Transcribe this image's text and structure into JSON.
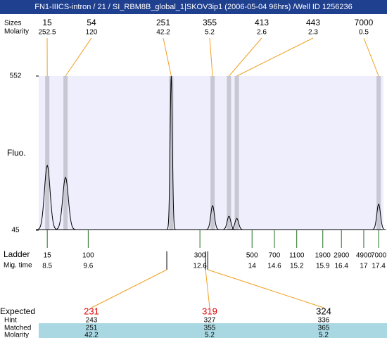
{
  "title": "FN1-IIICS-intron / 21 / SI_RBM8B_global_1|SKOV3ip1 (2006-05-04 96hrs) /Well ID 1256236",
  "chart_data": {
    "type": "electropherogram",
    "y_label": "Fluo.",
    "ylim": [
      45,
      552
    ],
    "yticks": [
      45,
      552
    ],
    "xlim": [
      8.27,
      17.53
    ],
    "peaks": {
      "row_labels": [
        "Sizes",
        "Molarity"
      ],
      "sizes": [
        15,
        54,
        251,
        355,
        413,
        443,
        7000
      ],
      "molarity": [
        252.5,
        120,
        42.2,
        5.2,
        2.6,
        2.3,
        0.5
      ],
      "times": [
        8.5,
        8.99,
        11.83,
        12.94,
        13.38,
        13.59,
        17.4
      ],
      "heights": [
        258,
        219,
        552,
        126,
        91,
        84,
        131
      ]
    },
    "ladder": {
      "label": "Ladder",
      "time_label": "Mig. time",
      "sizes": [
        15,
        100,
        300,
        500,
        700,
        1100,
        1900,
        2900,
        4900,
        7000
      ],
      "times": [
        8.5,
        9.6,
        12.6,
        14,
        14.6,
        15.2,
        15.9,
        16.4,
        17,
        17.4
      ]
    },
    "expected": {
      "row_labels": [
        "Expected",
        "Hint",
        "Matched",
        "Molarity"
      ],
      "expected": [
        231,
        319,
        324
      ],
      "colors": [
        "#e00000",
        "#e00000",
        "#000000"
      ],
      "hint": [
        243,
        327,
        336
      ],
      "matched": [
        251,
        355,
        365
      ],
      "molarity": [
        42.2,
        5.2,
        5.2
      ],
      "times": [
        11.71,
        12.75,
        12.81
      ]
    }
  }
}
